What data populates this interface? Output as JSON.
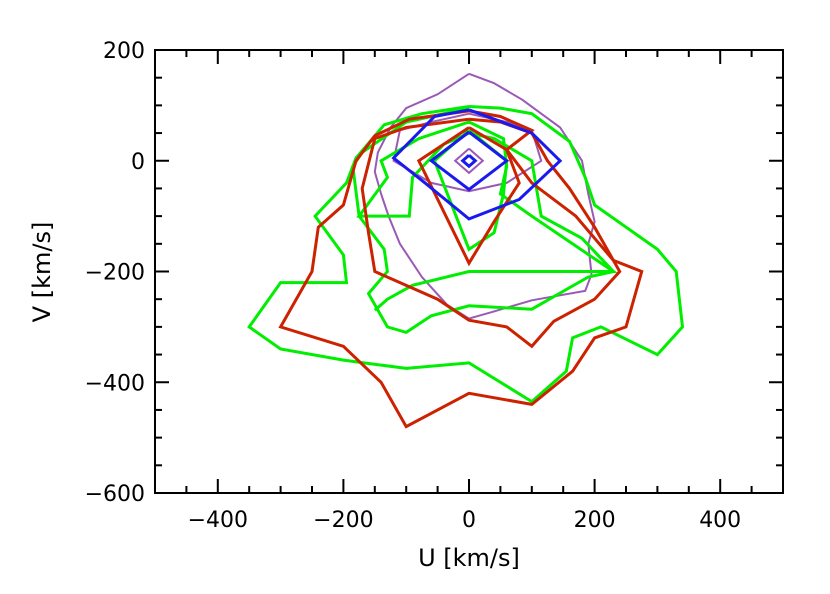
{
  "chart_data": {
    "type": "line",
    "title": "",
    "xlabel": "U [km/s]",
    "ylabel": "V [km/s]",
    "xlim": [
      -500,
      500
    ],
    "ylim": [
      -600,
      200
    ],
    "xticks": [
      -400,
      -200,
      0,
      200,
      400
    ],
    "yticks": [
      -600,
      -400,
      -200,
      0,
      200
    ],
    "xtick_labels": [
      "−400",
      "−200",
      "0",
      "200",
      "400"
    ],
    "ytick_labels": [
      "−600",
      "−400",
      "−200",
      "0",
      "200"
    ],
    "grid": false,
    "legend": false,
    "series": [
      {
        "color": "#9b59b6",
        "contours": [
          [
            [
              0,
              157
            ],
            [
              -50,
              120
            ],
            [
              -100,
              95
            ],
            [
              -125,
              60
            ],
            [
              -145,
              15
            ],
            [
              -150,
              -20
            ],
            [
              -140,
              -60
            ],
            [
              -128,
              -100
            ],
            [
              -110,
              -150
            ],
            [
              -75,
              -210
            ],
            [
              -35,
              -260
            ],
            [
              0,
              -285
            ],
            [
              40,
              -272
            ],
            [
              100,
              -252
            ],
            [
              185,
              -235
            ],
            [
              195,
              -205
            ],
            [
              190,
              -150
            ],
            [
              200,
              -110
            ],
            [
              190,
              -60
            ],
            [
              180,
              0
            ],
            [
              145,
              60
            ],
            [
              85,
              110
            ],
            [
              40,
              140
            ],
            [
              0,
              157
            ]
          ],
          [
            [
              0,
              85
            ],
            [
              -60,
              70
            ],
            [
              -110,
              55
            ],
            [
              -120,
              0
            ],
            [
              -60,
              -40
            ],
            [
              0,
              -55
            ],
            [
              60,
              -40
            ],
            [
              115,
              0
            ],
            [
              100,
              55
            ],
            [
              60,
              70
            ],
            [
              0,
              85
            ]
          ],
          [
            [
              0,
              22
            ],
            [
              -22,
              0
            ],
            [
              0,
              -22
            ],
            [
              22,
              0
            ],
            [
              0,
              22
            ]
          ]
        ]
      },
      {
        "color": "#00ee00",
        "contours": [
          [
            [
              0,
              98
            ],
            [
              -75,
              85
            ],
            [
              -135,
              65
            ],
            [
              -180,
              5
            ],
            [
              -195,
              -40
            ],
            [
              -245,
              -100
            ],
            [
              -200,
              -170
            ],
            [
              -195,
              -220
            ],
            [
              -300,
              -220
            ],
            [
              -350,
              -300
            ],
            [
              -300,
              -340
            ],
            [
              -200,
              -360
            ],
            [
              -100,
              -375
            ],
            [
              0,
              -365
            ],
            [
              100,
              -435
            ],
            [
              155,
              -380
            ],
            [
              165,
              -320
            ],
            [
              210,
              -300
            ],
            [
              300,
              -350
            ],
            [
              340,
              -300
            ],
            [
              330,
              -200
            ],
            [
              300,
              -160
            ],
            [
              200,
              -80
            ],
            [
              185,
              -30
            ],
            [
              160,
              35
            ],
            [
              100,
              85
            ],
            [
              50,
              95
            ],
            [
              0,
              98
            ]
          ],
          [
            [
              0,
              95
            ],
            [
              -100,
              70
            ],
            [
              -170,
              15
            ],
            [
              -185,
              -10
            ],
            [
              -175,
              -100
            ],
            [
              -135,
              -160
            ],
            [
              -130,
              -200
            ],
            [
              -160,
              -240
            ],
            [
              -130,
              -300
            ],
            [
              -100,
              -310
            ],
            [
              -60,
              -280
            ],
            [
              0,
              -262
            ],
            [
              100,
              -268
            ],
            [
              190,
              -210
            ],
            [
              230,
              -200
            ],
            [
              100,
              -100
            ],
            [
              50,
              -60
            ],
            [
              60,
              -10
            ],
            [
              55,
              40
            ],
            [
              0,
              70
            ],
            [
              -80,
              40
            ],
            [
              -140,
              0
            ],
            [
              -130,
              -30
            ],
            [
              -175,
              -100
            ],
            [
              -95,
              -100
            ],
            [
              -90,
              -30
            ],
            [
              -40,
              30
            ],
            [
              0,
              50
            ],
            [
              40,
              40
            ],
            [
              100,
              0
            ],
            [
              115,
              -100
            ],
            [
              180,
              -140
            ],
            [
              230,
              -200
            ],
            [
              0,
              -200
            ],
            [
              -90,
              -225
            ],
            [
              -130,
              -250
            ],
            [
              -150,
              -270
            ]
          ],
          [
            [
              0,
              55
            ],
            [
              -55,
              0
            ],
            [
              0,
              -160
            ],
            [
              40,
              -130
            ],
            [
              55,
              -60
            ],
            [
              60,
              0
            ],
            [
              0,
              55
            ]
          ]
        ]
      },
      {
        "color": "#cc2200",
        "contours": [
          [
            [
              0,
              90
            ],
            [
              -95,
              75
            ],
            [
              -150,
              45
            ],
            [
              -180,
              0
            ],
            [
              -200,
              -80
            ],
            [
              -240,
              -120
            ],
            [
              -250,
              -200
            ],
            [
              -300,
              -300
            ],
            [
              -200,
              -335
            ],
            [
              -140,
              -400
            ],
            [
              -100,
              -480
            ],
            [
              0,
              -420
            ],
            [
              100,
              -440
            ],
            [
              165,
              -380
            ],
            [
              200,
              -320
            ],
            [
              250,
              -300
            ],
            [
              275,
              -200
            ],
            [
              230,
              -180
            ],
            [
              170,
              -100
            ],
            [
              100,
              -40
            ],
            [
              60,
              20
            ],
            [
              100,
              55
            ],
            [
              50,
              80
            ],
            [
              0,
              90
            ]
          ],
          [
            [
              0,
              75
            ],
            [
              -100,
              60
            ],
            [
              -150,
              40
            ],
            [
              -170,
              -50
            ],
            [
              -160,
              -130
            ],
            [
              -150,
              -200
            ],
            [
              -50,
              -250
            ],
            [
              0,
              -288
            ],
            [
              60,
              -300
            ],
            [
              100,
              -335
            ],
            [
              135,
              -290
            ],
            [
              200,
              -250
            ],
            [
              240,
              -200
            ],
            [
              200,
              -120
            ],
            [
              160,
              -50
            ],
            [
              125,
              0
            ],
            [
              100,
              50
            ],
            [
              50,
              70
            ],
            [
              0,
              75
            ]
          ],
          [
            [
              0,
              60
            ],
            [
              -80,
              0
            ],
            [
              0,
              -185
            ],
            [
              40,
              -110
            ],
            [
              80,
              -40
            ],
            [
              60,
              20
            ],
            [
              0,
              60
            ]
          ]
        ]
      },
      {
        "color": "#1a1aee",
        "contours": [
          [
            [
              0,
              92
            ],
            [
              -55,
              80
            ],
            [
              -120,
              5
            ],
            [
              -70,
              -40
            ],
            [
              0,
              -105
            ],
            [
              80,
              -70
            ],
            [
              145,
              0
            ],
            [
              100,
              50
            ],
            [
              0,
              92
            ]
          ],
          [
            [
              0,
              52
            ],
            [
              -60,
              0
            ],
            [
              0,
              -52
            ],
            [
              60,
              0
            ],
            [
              0,
              52
            ]
          ],
          [
            [
              0,
              10
            ],
            [
              -10,
              0
            ],
            [
              0,
              -10
            ],
            [
              10,
              0
            ],
            [
              0,
              10
            ]
          ]
        ]
      }
    ]
  }
}
